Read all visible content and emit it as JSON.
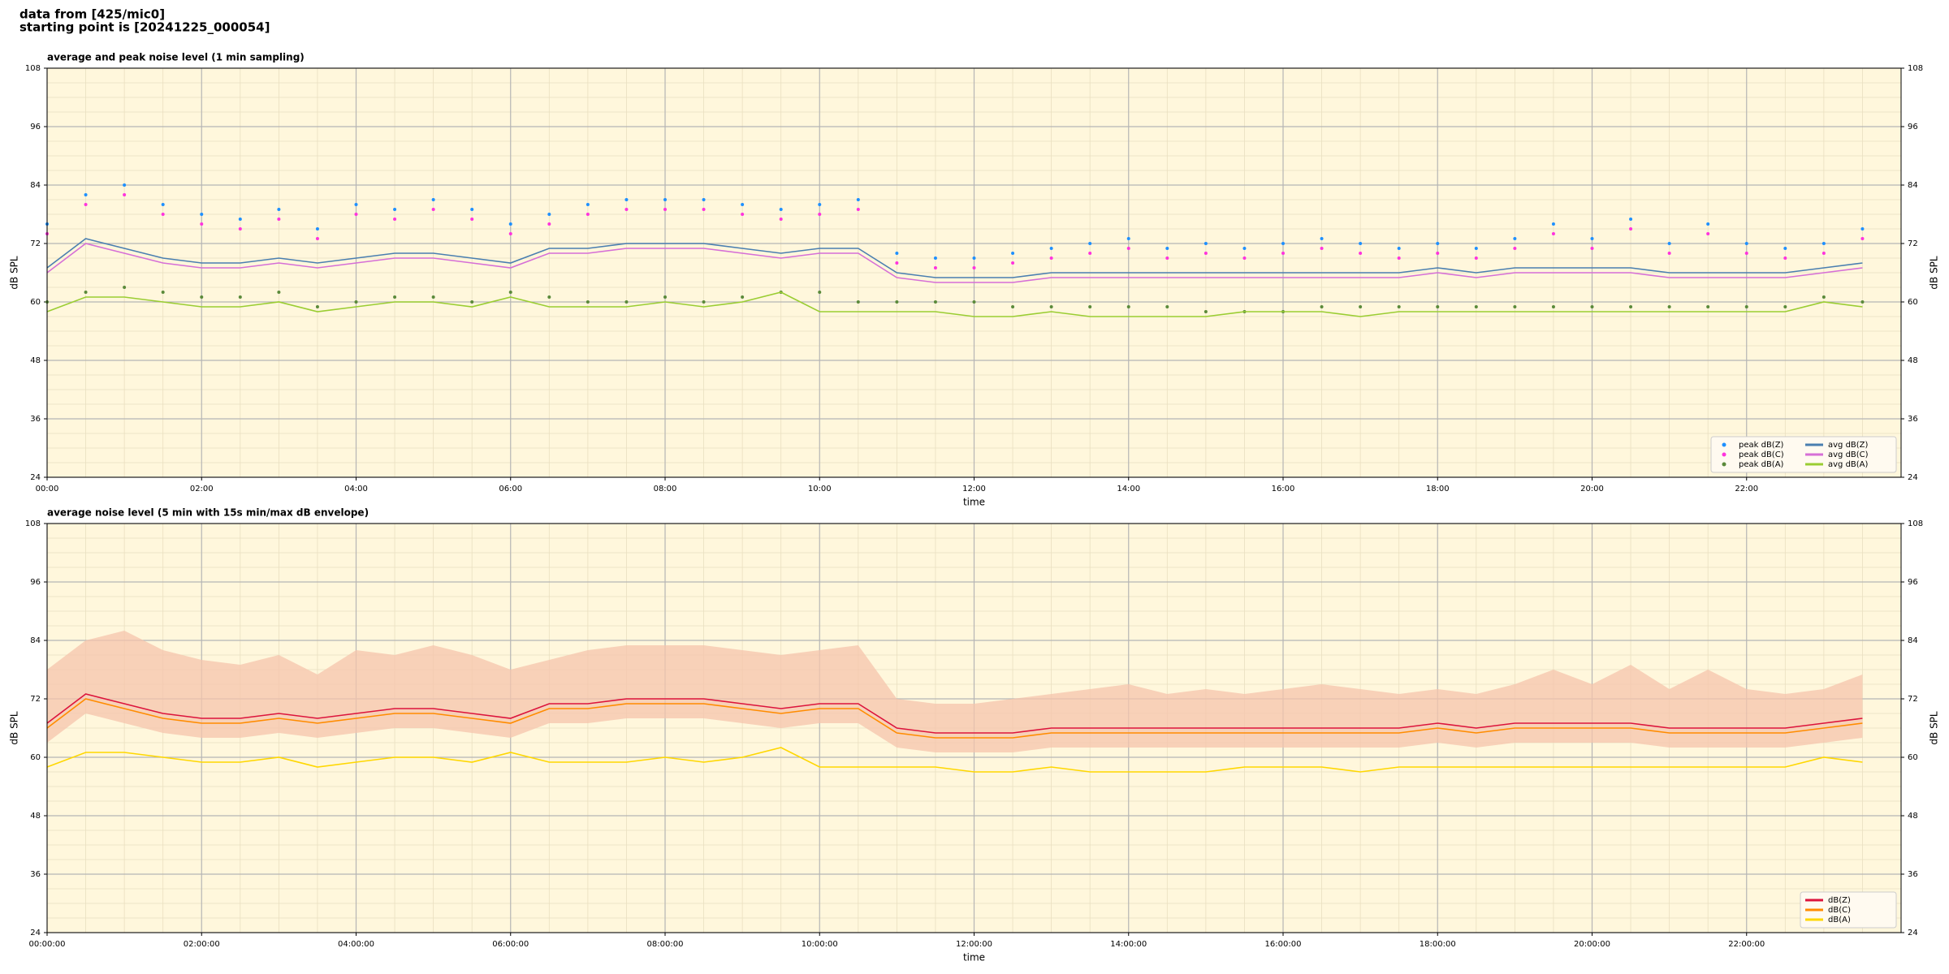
{
  "header": {
    "line1": "data from [425/mic0]",
    "line2": "starting point is [20241225_000054]"
  },
  "chart_data": [
    {
      "type": "line",
      "title": "average and peak noise level (1 min sampling)",
      "xlabel": "time",
      "ylabel": "dB SPL",
      "x": [
        0,
        0.5,
        1,
        1.5,
        2,
        2.5,
        3,
        3.5,
        4,
        4.5,
        5,
        5.5,
        6,
        6.5,
        7,
        7.5,
        8,
        8.5,
        9,
        9.5,
        10,
        10.5,
        11,
        11.5,
        12,
        12.5,
        13,
        13.5,
        14,
        14.5,
        15,
        15.5,
        16,
        16.5,
        17,
        17.5,
        18,
        18.5,
        19,
        19.5,
        20,
        20.5,
        21,
        21.5,
        22,
        22.5,
        23,
        23.5
      ],
      "xlim": [
        0,
        24
      ],
      "xticks": [
        {
          "value": 0,
          "label": "00:00"
        },
        {
          "value": 2,
          "label": "02:00"
        },
        {
          "value": 4,
          "label": "04:00"
        },
        {
          "value": 6,
          "label": "06:00"
        },
        {
          "value": 8,
          "label": "08:00"
        },
        {
          "value": 10,
          "label": "10:00"
        },
        {
          "value": 12,
          "label": "12:00"
        },
        {
          "value": 14,
          "label": "14:00"
        },
        {
          "value": 16,
          "label": "16:00"
        },
        {
          "value": 18,
          "label": "18:00"
        },
        {
          "value": 20,
          "label": "20:00"
        },
        {
          "value": 22,
          "label": "22:00"
        }
      ],
      "ylim": [
        24,
        108
      ],
      "yticks": [
        24,
        36,
        48,
        60,
        72,
        84,
        96,
        108
      ],
      "grid": true,
      "legend": "lower right",
      "legend_columns": 2,
      "series": [
        {
          "name": "peak dB(Z)",
          "style": "points",
          "color": "#1e90ff",
          "values": [
            76,
            82,
            84,
            80,
            78,
            77,
            79,
            75,
            80,
            79,
            81,
            79,
            76,
            78,
            80,
            81,
            81,
            81,
            80,
            79,
            80,
            81,
            70,
            69,
            69,
            70,
            71,
            72,
            73,
            71,
            72,
            71,
            72,
            73,
            72,
            71,
            72,
            71,
            73,
            76,
            73,
            77,
            72,
            76,
            72,
            71,
            72,
            75
          ]
        },
        {
          "name": "peak dB(C)",
          "style": "points",
          "color": "#ff33dd",
          "values": [
            74,
            80,
            82,
            78,
            76,
            75,
            77,
            73,
            78,
            77,
            79,
            77,
            74,
            76,
            78,
            79,
            79,
            79,
            78,
            77,
            78,
            79,
            68,
            67,
            67,
            68,
            69,
            70,
            71,
            69,
            70,
            69,
            70,
            71,
            70,
            69,
            70,
            69,
            71,
            74,
            71,
            75,
            70,
            74,
            70,
            69,
            70,
            73
          ]
        },
        {
          "name": "peak dB(A)",
          "style": "points",
          "color": "#5a8a3a",
          "values": [
            60,
            62,
            63,
            62,
            61,
            61,
            62,
            59,
            60,
            61,
            61,
            60,
            62,
            61,
            60,
            60,
            61,
            60,
            61,
            62,
            62,
            60,
            60,
            60,
            60,
            59,
            59,
            59,
            59,
            59,
            58,
            58,
            58,
            59,
            59,
            59,
            59,
            59,
            59,
            59,
            59,
            59,
            59,
            59,
            59,
            59,
            61,
            60
          ]
        },
        {
          "name": "avg dB(Z)",
          "style": "line",
          "color": "#4a7fb0",
          "values": [
            67,
            73,
            71,
            69,
            68,
            68,
            69,
            68,
            69,
            70,
            70,
            69,
            68,
            71,
            71,
            72,
            72,
            72,
            71,
            70,
            71,
            71,
            66,
            65,
            65,
            65,
            66,
            66,
            66,
            66,
            66,
            66,
            66,
            66,
            66,
            66,
            67,
            66,
            67,
            67,
            67,
            67,
            66,
            66,
            66,
            66,
            67,
            68
          ]
        },
        {
          "name": "avg dB(C)",
          "style": "line",
          "color": "#d66fd6",
          "values": [
            66,
            72,
            70,
            68,
            67,
            67,
            68,
            67,
            68,
            69,
            69,
            68,
            67,
            70,
            70,
            71,
            71,
            71,
            70,
            69,
            70,
            70,
            65,
            64,
            64,
            64,
            65,
            65,
            65,
            65,
            65,
            65,
            65,
            65,
            65,
            65,
            66,
            65,
            66,
            66,
            66,
            66,
            65,
            65,
            65,
            65,
            66,
            67
          ]
        },
        {
          "name": "avg dB(A)",
          "style": "line",
          "color": "#9acd32",
          "values": [
            58,
            61,
            61,
            60,
            59,
            59,
            60,
            58,
            59,
            60,
            60,
            59,
            61,
            59,
            59,
            59,
            60,
            59,
            60,
            62,
            58,
            58,
            58,
            58,
            57,
            57,
            58,
            57,
            57,
            57,
            57,
            58,
            58,
            58,
            57,
            58,
            58,
            58,
            58,
            58,
            58,
            58,
            58,
            58,
            58,
            58,
            60,
            59
          ]
        }
      ]
    },
    {
      "type": "line",
      "title": "average noise level (5 min with 15s min/max dB envelope)",
      "xlabel": "time",
      "ylabel": "dB SPL",
      "x": [
        0,
        0.5,
        1,
        1.5,
        2,
        2.5,
        3,
        3.5,
        4,
        4.5,
        5,
        5.5,
        6,
        6.5,
        7,
        7.5,
        8,
        8.5,
        9,
        9.5,
        10,
        10.5,
        11,
        11.5,
        12,
        12.5,
        13,
        13.5,
        14,
        14.5,
        15,
        15.5,
        16,
        16.5,
        17,
        17.5,
        18,
        18.5,
        19,
        19.5,
        20,
        20.5,
        21,
        21.5,
        22,
        22.5,
        23,
        23.5
      ],
      "xlim": [
        0,
        24
      ],
      "xticks": [
        {
          "value": 0,
          "label": "00:00:00"
        },
        {
          "value": 2,
          "label": "02:00:00"
        },
        {
          "value": 4,
          "label": "04:00:00"
        },
        {
          "value": 6,
          "label": "06:00:00"
        },
        {
          "value": 8,
          "label": "08:00:00"
        },
        {
          "value": 10,
          "label": "10:00:00"
        },
        {
          "value": 12,
          "label": "12:00:00"
        },
        {
          "value": 14,
          "label": "14:00:00"
        },
        {
          "value": 16,
          "label": "16:00:00"
        },
        {
          "value": 18,
          "label": "18:00:00"
        },
        {
          "value": 20,
          "label": "20:00:00"
        },
        {
          "value": 22,
          "label": "22:00:00"
        }
      ],
      "ylim": [
        24,
        108
      ],
      "yticks": [
        24,
        36,
        48,
        60,
        72,
        84,
        96,
        108
      ],
      "grid": true,
      "legend": "lower right",
      "legend_columns": 1,
      "series": [
        {
          "style": "band",
          "color": "#f6c4ac",
          "lower": [
            63,
            69,
            67,
            65,
            64,
            64,
            65,
            64,
            65,
            66,
            66,
            65,
            64,
            67,
            67,
            68,
            68,
            68,
            67,
            66,
            67,
            67,
            62,
            61,
            61,
            61,
            62,
            62,
            62,
            62,
            62,
            62,
            62,
            62,
            62,
            62,
            63,
            62,
            63,
            63,
            63,
            63,
            62,
            62,
            62,
            62,
            63,
            64
          ],
          "values": [
            78,
            84,
            86,
            82,
            80,
            79,
            81,
            77,
            82,
            81,
            83,
            81,
            78,
            80,
            82,
            83,
            83,
            83,
            82,
            81,
            82,
            83,
            72,
            71,
            71,
            72,
            73,
            74,
            75,
            73,
            74,
            73,
            74,
            75,
            74,
            73,
            74,
            73,
            75,
            78,
            75,
            79,
            74,
            78,
            74,
            73,
            74,
            77
          ]
        },
        {
          "name": "dB(Z)",
          "style": "line",
          "color": "#dc143c",
          "values": [
            67,
            73,
            71,
            69,
            68,
            68,
            69,
            68,
            69,
            70,
            70,
            69,
            68,
            71,
            71,
            72,
            72,
            72,
            71,
            70,
            71,
            71,
            66,
            65,
            65,
            65,
            66,
            66,
            66,
            66,
            66,
            66,
            66,
            66,
            66,
            66,
            67,
            66,
            67,
            67,
            67,
            67,
            66,
            66,
            66,
            66,
            67,
            68
          ]
        },
        {
          "name": "dB(C)",
          "style": "line",
          "color": "#ff8c00",
          "values": [
            66,
            72,
            70,
            68,
            67,
            67,
            68,
            67,
            68,
            69,
            69,
            68,
            67,
            70,
            70,
            71,
            71,
            71,
            70,
            69,
            70,
            70,
            65,
            64,
            64,
            64,
            65,
            65,
            65,
            65,
            65,
            65,
            65,
            65,
            65,
            65,
            66,
            65,
            66,
            66,
            66,
            66,
            65,
            65,
            65,
            65,
            66,
            67
          ]
        },
        {
          "name": "dB(A)",
          "style": "line",
          "color": "#ffd700",
          "values": [
            58,
            61,
            61,
            60,
            59,
            59,
            60,
            58,
            59,
            60,
            60,
            59,
            61,
            59,
            59,
            59,
            60,
            59,
            60,
            62,
            58,
            58,
            58,
            58,
            57,
            57,
            58,
            57,
            57,
            57,
            57,
            58,
            58,
            58,
            57,
            58,
            58,
            58,
            58,
            58,
            58,
            58,
            58,
            58,
            58,
            58,
            60,
            59
          ]
        }
      ]
    }
  ]
}
